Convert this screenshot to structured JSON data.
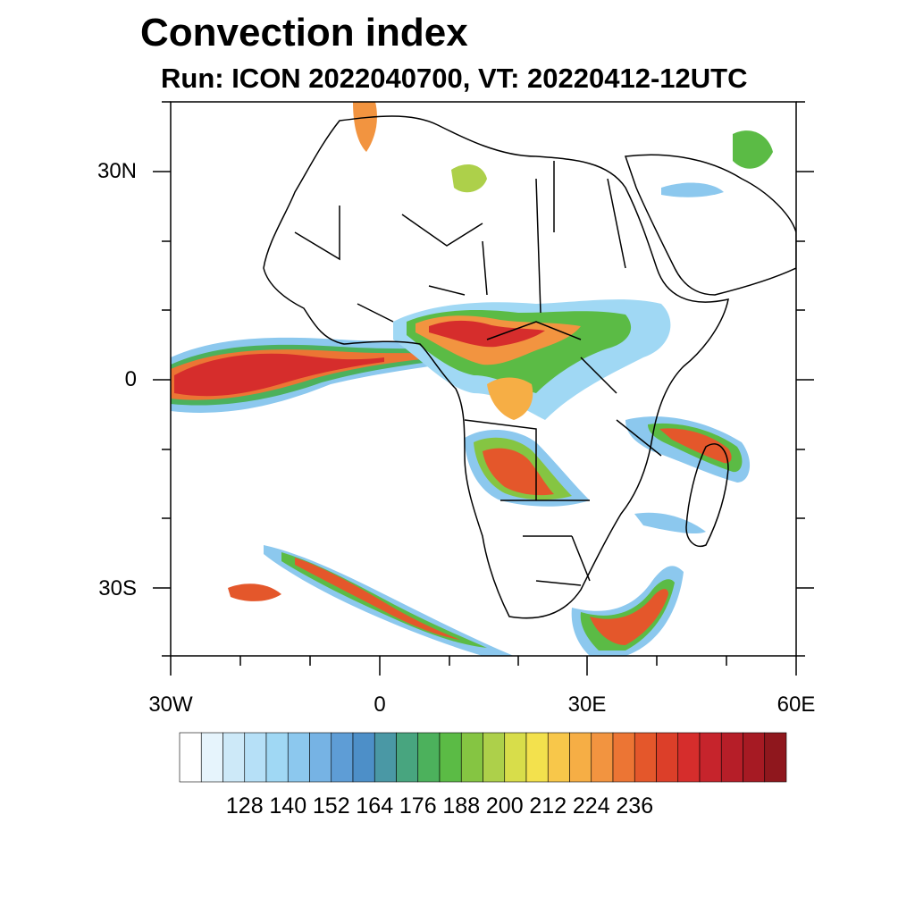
{
  "title": "Convection index",
  "subtitle": "Run: ICON 2022040700,  VT: 20220412-12UTC",
  "axes": {
    "lat_labels": [
      "30N",
      "0",
      "30S"
    ],
    "lon_labels": [
      "30W",
      "0",
      "30E",
      "60E"
    ]
  },
  "colorbar": {
    "labels": [
      "128",
      "140",
      "152",
      "164",
      "176",
      "188",
      "200",
      "212",
      "224",
      "236"
    ],
    "colors": [
      "#ffffff",
      "#e6f4fc",
      "#cde9f8",
      "#b6e0f7",
      "#a0d8f4",
      "#8cc8ee",
      "#76b3e4",
      "#5e9dd6",
      "#4d8fc8",
      "#4a98a5",
      "#48a57f",
      "#4cb15c",
      "#5bbb45",
      "#85c542",
      "#add04a",
      "#d8dd4a",
      "#f3e14d",
      "#f8c74a",
      "#f6ae45",
      "#f29440",
      "#ec7534",
      "#e4572b",
      "#dc3f29",
      "#d62d2c",
      "#c6242c",
      "#b61e28",
      "#a61a23",
      "#8f171d"
    ]
  }
}
